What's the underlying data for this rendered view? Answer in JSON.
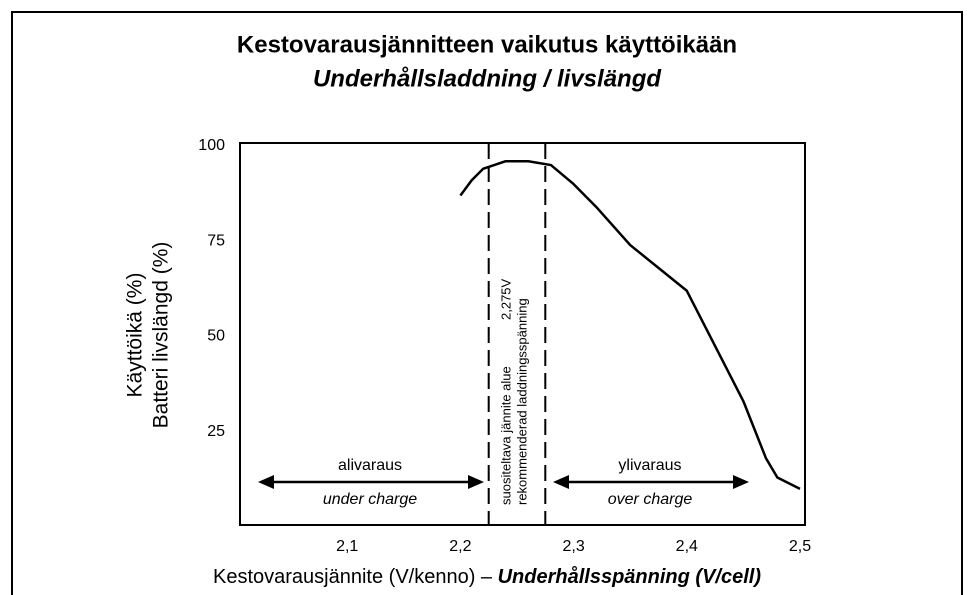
{
  "chart_data": {
    "type": "line",
    "title": "Kestovarausjännitteen vaikutus käyttöikään",
    "subtitle": "Underhållsladdning / livslängd",
    "ylabel": [
      "Käyttöikä (%)",
      "Batteri livslängd (%)"
    ],
    "xlabel": {
      "main": "Kestovarausjännite (V/kenno) – ",
      "emphasis": "Underhållsspänning (V/cell)"
    },
    "x": [
      2.2,
      2.21,
      2.22,
      2.24,
      2.26,
      2.28,
      2.3,
      2.32,
      2.35,
      2.4,
      2.45,
      2.47,
      2.48,
      2.5
    ],
    "series": [
      {
        "color": "#000000",
        "values": [
          87,
          91,
          94,
          96,
          96,
          95,
          90,
          84,
          74,
          62,
          33,
          18,
          13,
          10
        ]
      }
    ],
    "xlim": [
      2.0,
      2.5
    ],
    "ylim": [
      0,
      100
    ],
    "xticks": [
      {
        "value": 2.1,
        "label": "2,1"
      },
      {
        "value": 2.2,
        "label": "2,2"
      },
      {
        "value": 2.3,
        "label": "2,3"
      },
      {
        "value": 2.4,
        "label": "2,4"
      },
      {
        "value": 2.5,
        "label": "2,5"
      }
    ],
    "yticks": [
      25,
      50,
      75,
      100
    ],
    "reference_lines": [
      2.225,
      2.275
    ],
    "annotations": [
      "alivaraus",
      "under charge",
      "ylivaraus",
      "over charge",
      "suositeltava jännite alue",
      "2,275V",
      "rekommenderad laddningsspänning"
    ],
    "title_color": "#2f5fb5"
  }
}
